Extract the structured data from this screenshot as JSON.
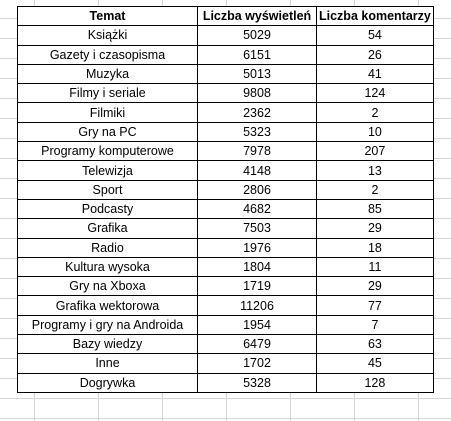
{
  "table": {
    "headers": [
      "Temat",
      "Liczba wyświetleń",
      "Liczba komentarzy"
    ],
    "rows": [
      [
        "Książki",
        "5029",
        "54"
      ],
      [
        "Gazety i czasopisma",
        "6151",
        "26"
      ],
      [
        "Muzyka",
        "5013",
        "41"
      ],
      [
        "Filmy i seriale",
        "9808",
        "124"
      ],
      [
        "Filmiki",
        "2362",
        "2"
      ],
      [
        "Gry na PC",
        "5323",
        "10"
      ],
      [
        "Programy komputerowe",
        "7978",
        "207"
      ],
      [
        "Telewizja",
        "4148",
        "13"
      ],
      [
        "Sport",
        "2806",
        "2"
      ],
      [
        "Podcasty",
        "4682",
        "85"
      ],
      [
        "Grafika",
        "7503",
        "29"
      ],
      [
        "Radio",
        "1976",
        "18"
      ],
      [
        "Kultura wysoka",
        "1804",
        "11"
      ],
      [
        "Gry na Xboxa",
        "1719",
        "29"
      ],
      [
        "Grafika wektorowa",
        "11206",
        "77"
      ],
      [
        "Programy i gry na Androida",
        "1954",
        "7"
      ],
      [
        "Bazy wiedzy",
        "6479",
        "63"
      ],
      [
        "Inne",
        "1702",
        "45"
      ],
      [
        "Dogrywka",
        "5328",
        "128"
      ]
    ]
  },
  "colors": {
    "gridline": "#d4d4d4",
    "border": "#000000",
    "background": "#ffffff"
  }
}
